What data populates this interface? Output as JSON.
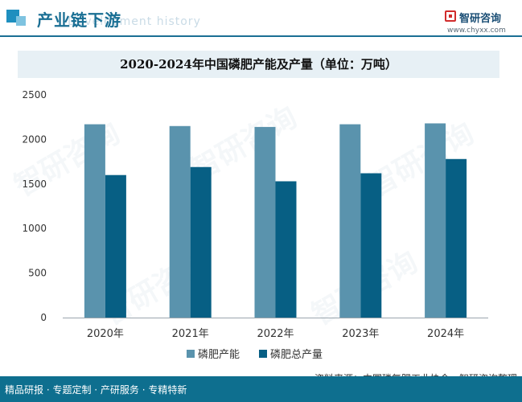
{
  "header": {
    "section_title": "产业链下游",
    "section_subtitle": "Development history",
    "brand_name": "智研咨询",
    "brand_url": "www.chyxx.com"
  },
  "watermark": "智研咨询",
  "colors": {
    "capacity": "#5a93ad",
    "output": "#075f84",
    "axis": "#9aa5ad",
    "title_band": "#e7f0f5"
  },
  "chart_data": {
    "type": "bar",
    "title": "2020-2024年中国磷肥产能及产量（单位：万吨）",
    "categories": [
      "2020年",
      "2021年",
      "2022年",
      "2023年",
      "2024年"
    ],
    "series": [
      {
        "name": "磷肥产能",
        "values": [
          2170,
          2150,
          2140,
          2170,
          2180
        ]
      },
      {
        "name": "磷肥总产量",
        "values": [
          1600,
          1690,
          1530,
          1620,
          1780
        ]
      }
    ],
    "yticks": [
      0,
      500,
      1000,
      1500,
      2000,
      2500
    ],
    "ylim": [
      0,
      2500
    ],
    "legend": "bottom-center",
    "grid": false
  },
  "footer": {
    "tags": "精品研报 · 专题定制 · 产研服务 · 专精特新",
    "source": "资料来源：中国磷复肥工业协会、智研咨询整理"
  }
}
